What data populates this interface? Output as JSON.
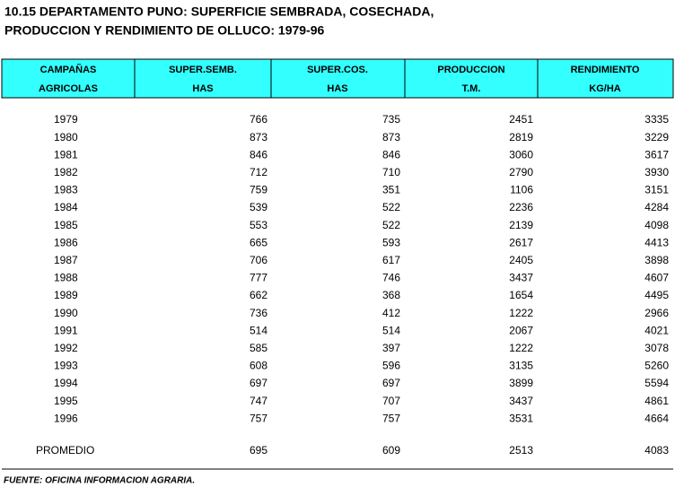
{
  "header": {
    "title": [
      "10.15  DEPARTAMENTO PUNO: SUPERFICIE SEMBRADA, COSECHADA,",
      "PRODUCCION Y RENDIMIENTO DE OLLUCO: 1979-96"
    ]
  },
  "table": {
    "columns": [
      [
        "CAMPAÑAS",
        "AGRICOLAS"
      ],
      [
        "SUPER.SEMB.",
        "HAS"
      ],
      [
        "SUPER.COS.",
        "HAS"
      ],
      [
        "PRODUCCION",
        "T.M."
      ],
      [
        "RENDIMIENTO",
        "KG/HA"
      ]
    ],
    "rows": [
      [
        1979,
        766,
        735,
        2451,
        3335
      ],
      [
        1980,
        873,
        873,
        2819,
        3229
      ],
      [
        1981,
        846,
        846,
        3060,
        3617
      ],
      [
        1982,
        712,
        710,
        2790,
        3930
      ],
      [
        1983,
        759,
        351,
        1106,
        3151
      ],
      [
        1984,
        539,
        522,
        2236,
        4284
      ],
      [
        1985,
        553,
        522,
        2139,
        4098
      ],
      [
        1986,
        665,
        593,
        2617,
        4413
      ],
      [
        1987,
        706,
        617,
        2405,
        3898
      ],
      [
        1988,
        777,
        746,
        3437,
        4607
      ],
      [
        1989,
        662,
        368,
        1654,
        4495
      ],
      [
        1990,
        736,
        412,
        1222,
        2966
      ],
      [
        1991,
        514,
        514,
        2067,
        4021
      ],
      [
        1992,
        585,
        397,
        1222,
        3078
      ],
      [
        1993,
        608,
        596,
        3135,
        5260
      ],
      [
        1994,
        697,
        697,
        3899,
        5594
      ],
      [
        1995,
        747,
        707,
        3437,
        4861
      ],
      [
        1996,
        757,
        757,
        3531,
        4664
      ]
    ],
    "average": [
      "PROMEDIO",
      695,
      609,
      2513,
      4083
    ]
  },
  "footnote": "FUENTE: OFICINA INFORMACION AGRARIA."
}
